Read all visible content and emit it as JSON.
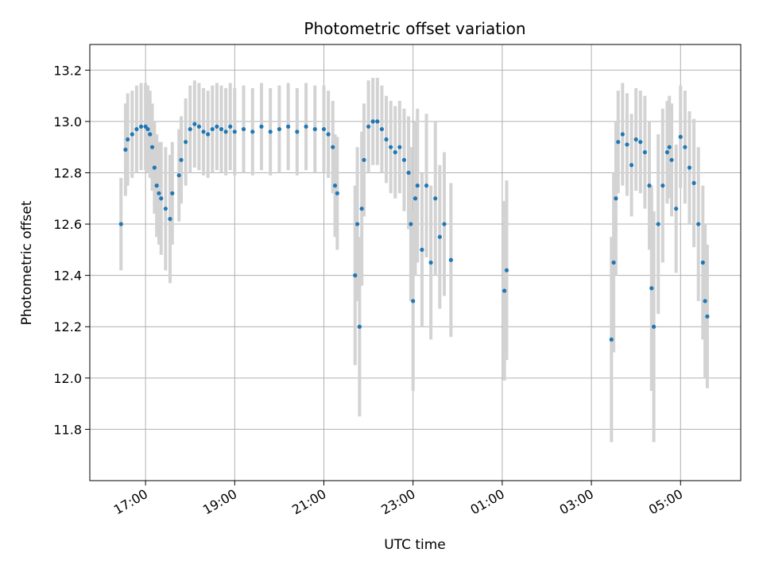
{
  "chart_data": {
    "type": "scatter",
    "title": "Photometric offset variation",
    "xlabel": "UTC time",
    "ylabel": "Photometric offset",
    "x_ticks": [
      "17:00",
      "19:00",
      "21:00",
      "23:00",
      "01:00",
      "03:00",
      "05:00"
    ],
    "x_tick_hours": [
      17,
      19,
      21,
      23,
      25,
      27,
      29
    ],
    "xlim_hours": [
      15.75,
      30.35
    ],
    "y_ticks": [
      "11.8",
      "12.0",
      "12.2",
      "12.4",
      "12.6",
      "12.8",
      "13.0",
      "13.2"
    ],
    "y_tick_values": [
      11.8,
      12.0,
      12.2,
      12.4,
      12.6,
      12.8,
      13.0,
      13.2
    ],
    "ylim": [
      11.6,
      13.3
    ],
    "grid": true,
    "marker_color": "#1f77b4",
    "errorbar_color": "#d3d3d3",
    "series": [
      {
        "x_hours": [
          16.45,
          16.55,
          16.6,
          16.7,
          16.8,
          16.9,
          17.0,
          17.05,
          17.1,
          17.15,
          17.2,
          17.25,
          17.3,
          17.35,
          17.45,
          17.55,
          17.6,
          17.75,
          17.8,
          17.9,
          18.0,
          18.1,
          18.2,
          18.3,
          18.4,
          18.5,
          18.6,
          18.7,
          18.8,
          18.9,
          19.0,
          19.2,
          19.4,
          19.6,
          19.8,
          20.0,
          20.2,
          20.4,
          20.6,
          20.8,
          21.0,
          21.1,
          21.2,
          21.25,
          21.3,
          21.7,
          21.75,
          21.8,
          21.85,
          21.9,
          22.0,
          22.1,
          22.2,
          22.3,
          22.4,
          22.5,
          22.6,
          22.7,
          22.8,
          22.9,
          22.95,
          23.0,
          23.05,
          23.1,
          23.2,
          23.3,
          23.4,
          23.5,
          23.6,
          23.7,
          23.85,
          25.05,
          25.1,
          27.45,
          27.5,
          27.55,
          27.6,
          27.7,
          27.8,
          27.9,
          28.0,
          28.1,
          28.2,
          28.3,
          28.35,
          28.4,
          28.5,
          28.6,
          28.7,
          28.75,
          28.8,
          28.9,
          29.0,
          29.1,
          29.2,
          29.3,
          29.4,
          29.5,
          29.55,
          29.6
        ],
        "y": [
          12.6,
          12.89,
          12.93,
          12.95,
          12.97,
          12.98,
          12.98,
          12.97,
          12.95,
          12.9,
          12.82,
          12.75,
          12.72,
          12.7,
          12.66,
          12.62,
          12.72,
          12.79,
          12.85,
          12.92,
          12.97,
          12.99,
          12.98,
          12.96,
          12.95,
          12.97,
          12.98,
          12.97,
          12.96,
          12.98,
          12.96,
          12.97,
          12.96,
          12.98,
          12.96,
          12.97,
          12.98,
          12.96,
          12.98,
          12.97,
          12.97,
          12.95,
          12.9,
          12.75,
          12.72,
          12.4,
          12.6,
          12.2,
          12.66,
          12.85,
          12.98,
          13.0,
          13.0,
          12.97,
          12.93,
          12.9,
          12.88,
          12.9,
          12.85,
          12.8,
          12.6,
          12.3,
          12.7,
          12.75,
          12.5,
          12.75,
          12.45,
          12.7,
          12.55,
          12.6,
          12.46,
          12.34,
          12.42,
          12.15,
          12.45,
          12.7,
          12.92,
          12.95,
          12.91,
          12.83,
          12.93,
          12.92,
          12.88,
          12.75,
          12.35,
          12.2,
          12.6,
          12.75,
          12.88,
          12.9,
          12.85,
          12.66,
          12.94,
          12.9,
          12.82,
          12.76,
          12.6,
          12.45,
          12.3,
          12.24
        ],
        "err": [
          0.18,
          0.18,
          0.18,
          0.17,
          0.17,
          0.17,
          0.17,
          0.17,
          0.17,
          0.17,
          0.18,
          0.2,
          0.2,
          0.22,
          0.24,
          0.25,
          0.2,
          0.18,
          0.17,
          0.17,
          0.17,
          0.17,
          0.17,
          0.17,
          0.17,
          0.17,
          0.17,
          0.17,
          0.17,
          0.17,
          0.17,
          0.17,
          0.17,
          0.17,
          0.17,
          0.17,
          0.17,
          0.17,
          0.17,
          0.17,
          0.17,
          0.17,
          0.18,
          0.2,
          0.22,
          0.35,
          0.3,
          0.35,
          0.3,
          0.22,
          0.18,
          0.17,
          0.17,
          0.17,
          0.17,
          0.18,
          0.18,
          0.18,
          0.2,
          0.22,
          0.3,
          0.35,
          0.3,
          0.3,
          0.3,
          0.28,
          0.3,
          0.3,
          0.28,
          0.28,
          0.3,
          0.35,
          0.35,
          0.4,
          0.35,
          0.3,
          0.2,
          0.2,
          0.2,
          0.2,
          0.2,
          0.2,
          0.22,
          0.25,
          0.4,
          0.45,
          0.35,
          0.3,
          0.2,
          0.2,
          0.22,
          0.25,
          0.2,
          0.22,
          0.22,
          0.25,
          0.3,
          0.3,
          0.3,
          0.28
        ]
      }
    ]
  }
}
